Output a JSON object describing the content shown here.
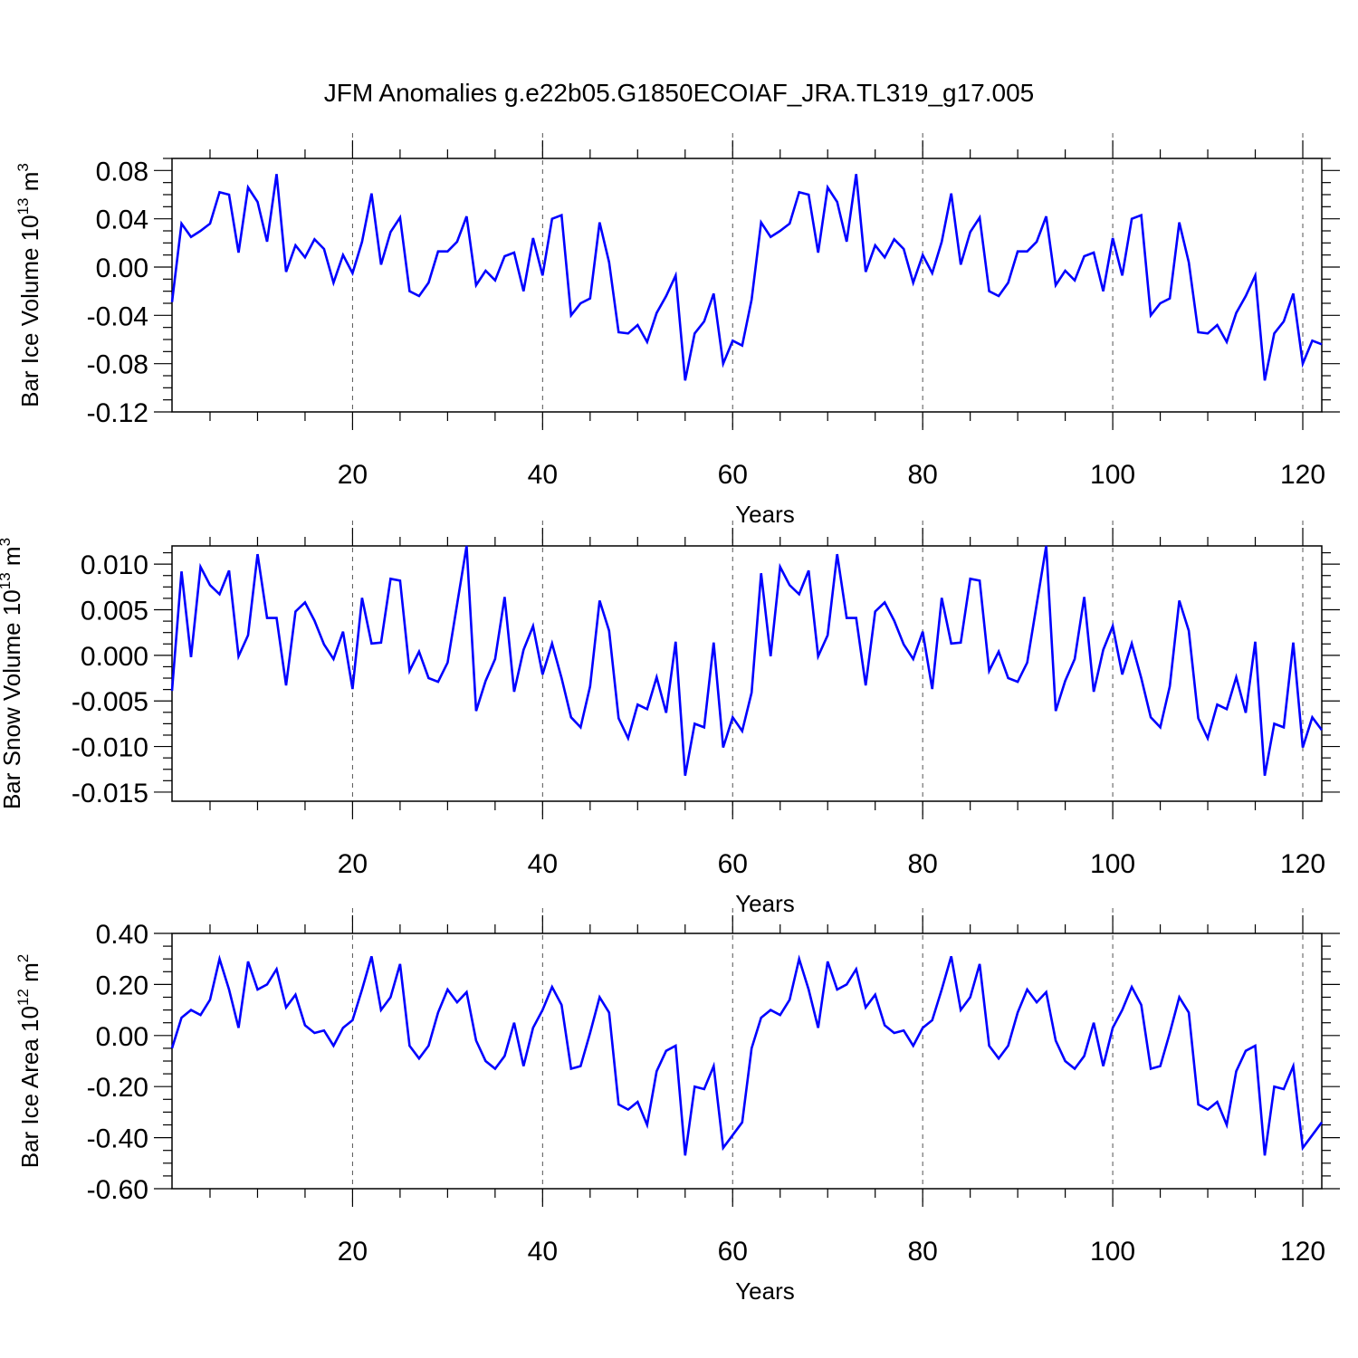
{
  "title": "JFM Anomalies g.e22b05.G1850ECOIAF_JRA.TL319_g17.005",
  "colors": {
    "line": "#0000ff",
    "axis": "#000000",
    "grid": "#555555"
  },
  "chart_data": [
    {
      "type": "line",
      "ylabel": "Bar Ice Volume 10",
      "ylabel_exp": "13",
      "ylabel_unit": " m",
      "ylabel_unit_exp": "3",
      "xlabel": "Years",
      "xlim": [
        1,
        122
      ],
      "ylim": [
        -0.12,
        0.09
      ],
      "yticks": [
        -0.12,
        -0.08,
        -0.04,
        0.0,
        0.04,
        0.08
      ],
      "ytick_labels": [
        "-0.12",
        "-0.08",
        "-0.04",
        "0.00",
        "0.04",
        "0.08"
      ],
      "xticks": [
        20,
        40,
        60,
        80,
        100,
        120
      ],
      "xtick_labels": [
        "20",
        "40",
        "60",
        "80",
        "100",
        "120"
      ],
      "grid_x": true,
      "x_start": 1,
      "values": [
        -0.029,
        0.036,
        0.025,
        0.03,
        0.036,
        0.062,
        0.06,
        0.012,
        0.066,
        0.054,
        0.021,
        0.077,
        -0.004,
        0.018,
        0.008,
        0.023,
        0.015,
        -0.013,
        0.01,
        -0.005,
        0.021,
        0.061,
        0.002,
        0.029,
        0.041,
        -0.02,
        -0.024,
        -0.013,
        0.013,
        0.013,
        0.021,
        0.042,
        -0.015,
        -0.003,
        -0.011,
        0.009,
        0.012,
        -0.02,
        0.024,
        -0.007,
        0.04,
        0.043,
        -0.04,
        -0.03,
        -0.026,
        0.037,
        0.004,
        -0.054,
        -0.055,
        -0.048,
        -0.062,
        -0.038,
        -0.024,
        -0.007,
        -0.094,
        -0.055,
        -0.045,
        -0.022,
        -0.08,
        -0.061,
        -0.065,
        -0.027,
        0.037,
        0.025,
        0.03,
        0.036,
        0.062,
        0.06,
        0.012,
        0.066,
        0.054,
        0.021,
        0.077,
        -0.004,
        0.018,
        0.008,
        0.023,
        0.015,
        -0.013,
        0.01,
        -0.005,
        0.021,
        0.061,
        0.002,
        0.029,
        0.041,
        -0.02,
        -0.024,
        -0.013,
        0.013,
        0.013,
        0.021,
        0.042,
        -0.015,
        -0.003,
        -0.011,
        0.009,
        0.012,
        -0.02,
        0.024,
        -0.007,
        0.04,
        0.043,
        -0.04,
        -0.03,
        -0.026,
        0.037,
        0.004,
        -0.054,
        -0.055,
        -0.048,
        -0.062,
        -0.038,
        -0.024,
        -0.007,
        -0.094,
        -0.055,
        -0.045,
        -0.022,
        -0.08,
        -0.061,
        -0.064
      ]
    },
    {
      "type": "line",
      "ylabel": "Bar Snow Volume 10",
      "ylabel_exp": "13",
      "ylabel_unit": " m",
      "ylabel_unit_exp": "3",
      "xlabel": "Years",
      "xlim": [
        1,
        122
      ],
      "ylim": [
        -0.016,
        0.012
      ],
      "yticks": [
        -0.015,
        -0.01,
        -0.005,
        0.0,
        0.005,
        0.01
      ],
      "ytick_labels": [
        "-0.015",
        "-0.010",
        "-0.005",
        "0.000",
        "0.005",
        "0.010"
      ],
      "xticks": [
        20,
        40,
        60,
        80,
        100,
        120
      ],
      "xtick_labels": [
        "20",
        "40",
        "60",
        "80",
        "100",
        "120"
      ],
      "grid_x": true,
      "x_start": 1,
      "values": [
        -0.0039,
        0.0092,
        -0.0002,
        0.0097,
        0.0077,
        0.0067,
        0.0093,
        -0.0001,
        0.0022,
        0.0111,
        0.0041,
        0.0041,
        -0.0033,
        0.0048,
        0.0058,
        0.0038,
        0.0012,
        -0.0004,
        0.0026,
        -0.0037,
        0.0063,
        0.0013,
        0.0014,
        0.0084,
        0.0082,
        -0.0017,
        0.0004,
        -0.0025,
        -0.0029,
        -0.0008,
        0.0056,
        0.012,
        -0.0061,
        -0.0028,
        -0.0004,
        0.0064,
        -0.004,
        0.0006,
        0.0032,
        -0.0021,
        0.0013,
        -0.0025,
        -0.0068,
        -0.0079,
        -0.0034,
        0.006,
        0.0027,
        -0.0069,
        -0.0091,
        -0.0054,
        -0.0059,
        -0.0024,
        -0.0063,
        0.0015,
        -0.0132,
        -0.0075,
        -0.0079,
        0.0014,
        -0.0101,
        -0.0068,
        -0.0083,
        -0.0041,
        0.009,
        -0.0001,
        0.0097,
        0.0077,
        0.0067,
        0.0093,
        -0.0001,
        0.0022,
        0.0111,
        0.0041,
        0.0041,
        -0.0033,
        0.0048,
        0.0058,
        0.0038,
        0.0012,
        -0.0004,
        0.0026,
        -0.0037,
        0.0063,
        0.0013,
        0.0014,
        0.0084,
        0.0082,
        -0.0017,
        0.0004,
        -0.0025,
        -0.0029,
        -0.0008,
        0.0056,
        0.012,
        -0.0061,
        -0.0028,
        -0.0004,
        0.0064,
        -0.004,
        0.0006,
        0.0032,
        -0.0021,
        0.0013,
        -0.0025,
        -0.0068,
        -0.0079,
        -0.0034,
        0.006,
        0.0027,
        -0.0069,
        -0.0091,
        -0.0054,
        -0.0059,
        -0.0024,
        -0.0063,
        0.0015,
        -0.0132,
        -0.0075,
        -0.0079,
        0.0014,
        -0.0101,
        -0.0068,
        -0.0082
      ]
    },
    {
      "type": "line",
      "ylabel": "Bar Ice Area 10",
      "ylabel_exp": "12",
      "ylabel_unit": " m",
      "ylabel_unit_exp": "2",
      "xlabel": "Years",
      "xlim": [
        1,
        122
      ],
      "ylim": [
        -0.6,
        0.4
      ],
      "yticks": [
        -0.6,
        -0.4,
        -0.2,
        0.0,
        0.2,
        0.4
      ],
      "ytick_labels": [
        "-0.60",
        "-0.40",
        "-0.20",
        "0.00",
        "0.20",
        "0.40"
      ],
      "xticks": [
        20,
        40,
        60,
        80,
        100,
        120
      ],
      "xtick_labels": [
        "20",
        "40",
        "60",
        "80",
        "100",
        "120"
      ],
      "grid_x": true,
      "x_start": 1,
      "values": [
        -0.05,
        0.07,
        0.1,
        0.08,
        0.14,
        0.3,
        0.18,
        0.03,
        0.29,
        0.18,
        0.2,
        0.26,
        0.11,
        0.16,
        0.04,
        0.01,
        0.02,
        -0.04,
        0.03,
        0.06,
        0.18,
        0.31,
        0.1,
        0.15,
        0.28,
        -0.04,
        -0.09,
        -0.04,
        0.09,
        0.18,
        0.13,
        0.17,
        -0.02,
        -0.1,
        -0.13,
        -0.08,
        0.05,
        -0.12,
        0.03,
        0.1,
        0.19,
        0.12,
        -0.13,
        -0.12,
        0.01,
        0.15,
        0.09,
        -0.27,
        -0.29,
        -0.26,
        -0.35,
        -0.14,
        -0.06,
        -0.04,
        -0.47,
        -0.2,
        -0.21,
        -0.12,
        -0.44,
        -0.39,
        -0.34,
        -0.05,
        0.07,
        0.1,
        0.08,
        0.14,
        0.3,
        0.18,
        0.03,
        0.29,
        0.18,
        0.2,
        0.26,
        0.11,
        0.16,
        0.04,
        0.01,
        0.02,
        -0.04,
        0.03,
        0.06,
        0.18,
        0.31,
        0.1,
        0.15,
        0.28,
        -0.04,
        -0.09,
        -0.04,
        0.09,
        0.18,
        0.13,
        0.17,
        -0.02,
        -0.1,
        -0.13,
        -0.08,
        0.05,
        -0.12,
        0.03,
        0.1,
        0.19,
        0.12,
        -0.13,
        -0.12,
        0.01,
        0.15,
        0.09,
        -0.27,
        -0.29,
        -0.26,
        -0.35,
        -0.14,
        -0.06,
        -0.04,
        -0.47,
        -0.2,
        -0.21,
        -0.12,
        -0.44,
        -0.39,
        -0.34
      ]
    }
  ]
}
